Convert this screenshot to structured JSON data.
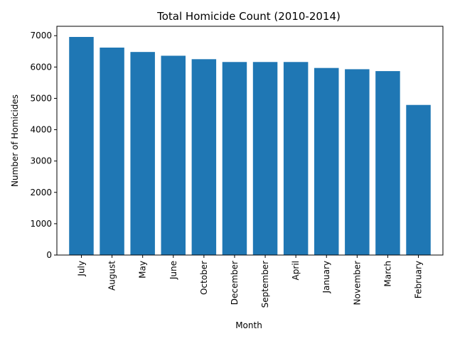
{
  "chart_data": {
    "type": "bar",
    "title": "Total Homicide Count (2010-2014)",
    "xlabel": "Month",
    "ylabel": "Number of Homicides",
    "categories": [
      "July",
      "August",
      "May",
      "June",
      "October",
      "December",
      "September",
      "April",
      "January",
      "November",
      "March",
      "February"
    ],
    "values": [
      6960,
      6620,
      6480,
      6360,
      6250,
      6160,
      6160,
      6160,
      5970,
      5930,
      5870,
      4790
    ],
    "ylim": [
      0,
      7300
    ],
    "yticks": [
      0,
      1000,
      2000,
      3000,
      4000,
      5000,
      6000,
      7000
    ],
    "grid": false,
    "legend": "none",
    "bar_color": "#1f77b4"
  }
}
